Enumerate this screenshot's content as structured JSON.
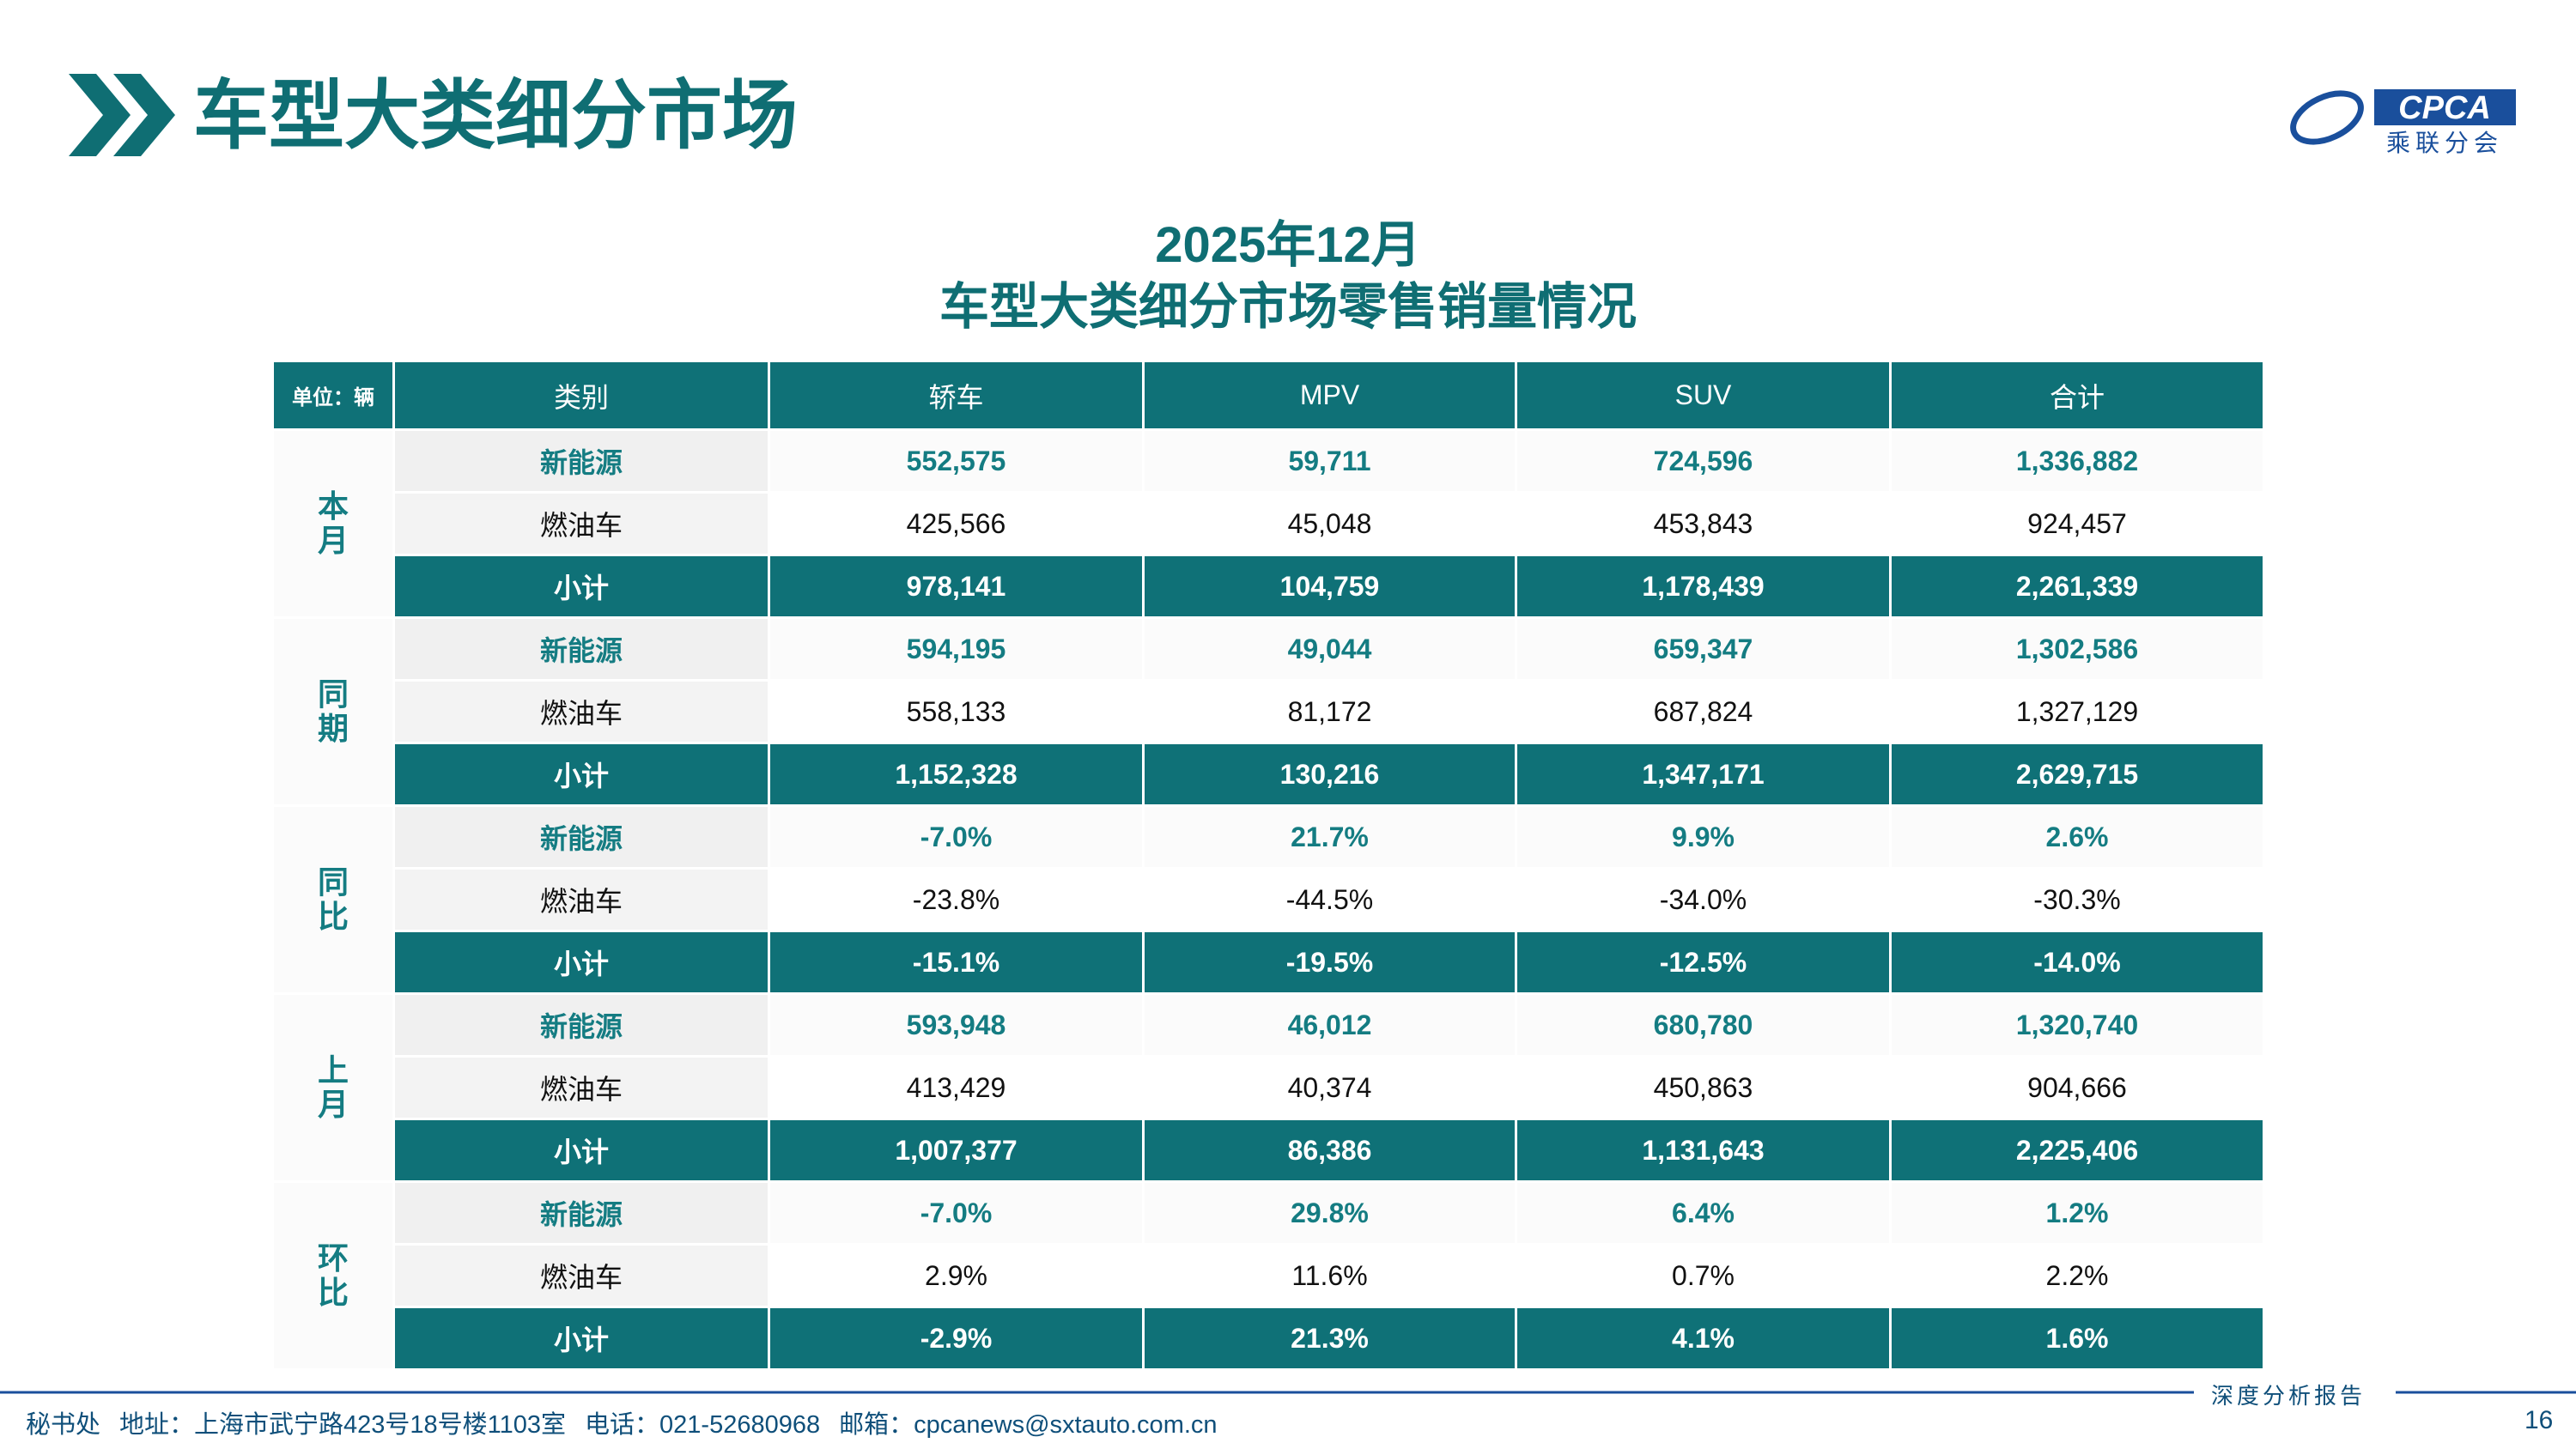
{
  "header": {
    "title": "车型大类细分市场",
    "logo": {
      "name": "CPCA",
      "subname": "乘联分会"
    }
  },
  "subtitle": {
    "line1": "2025年12月",
    "line2": "车型大类细分市场零售销量情况"
  },
  "table": {
    "unit": "单位：辆",
    "columns": [
      "类别",
      "轿车",
      "MPV",
      "SUV",
      "合计"
    ],
    "groups": [
      {
        "label": "本月",
        "rows": [
          [
            "新能源",
            "552,575",
            "59,711",
            "724,596",
            "1,336,882"
          ],
          [
            "燃油车",
            "425,566",
            "45,048",
            "453,843",
            "924,457"
          ],
          [
            "小计",
            "978,141",
            "104,759",
            "1,178,439",
            "2,261,339"
          ]
        ]
      },
      {
        "label": "同期",
        "rows": [
          [
            "新能源",
            "594,195",
            "49,044",
            "659,347",
            "1,302,586"
          ],
          [
            "燃油车",
            "558,133",
            "81,172",
            "687,824",
            "1,327,129"
          ],
          [
            "小计",
            "1,152,328",
            "130,216",
            "1,347,171",
            "2,629,715"
          ]
        ]
      },
      {
        "label": "同比",
        "rows": [
          [
            "新能源",
            "-7.0%",
            "21.7%",
            "9.9%",
            "2.6%"
          ],
          [
            "燃油车",
            "-23.8%",
            "-44.5%",
            "-34.0%",
            "-30.3%"
          ],
          [
            "小计",
            "-15.1%",
            "-19.5%",
            "-12.5%",
            "-14.0%"
          ]
        ]
      },
      {
        "label": "上月",
        "rows": [
          [
            "新能源",
            "593,948",
            "46,012",
            "680,780",
            "1,320,740"
          ],
          [
            "燃油车",
            "413,429",
            "40,374",
            "450,863",
            "904,666"
          ],
          [
            "小计",
            "1,007,377",
            "86,386",
            "1,131,643",
            "2,225,406"
          ]
        ]
      },
      {
        "label": "环比",
        "rows": [
          [
            "新能源",
            "-7.0%",
            "29.8%",
            "6.4%",
            "1.2%"
          ],
          [
            "燃油车",
            "2.9%",
            "11.6%",
            "0.7%",
            "2.2%"
          ],
          [
            "小计",
            "-2.9%",
            "21.3%",
            "4.1%",
            "1.6%"
          ]
        ]
      }
    ]
  },
  "footer": {
    "office": "秘书处",
    "address": "地址：上海市武宁路423号18号楼1103室",
    "phone": "电话：021-52680968",
    "email": "邮箱：cpcanews@sxtauto.com.cn",
    "tag": "深度分析报告",
    "page": "16"
  }
}
